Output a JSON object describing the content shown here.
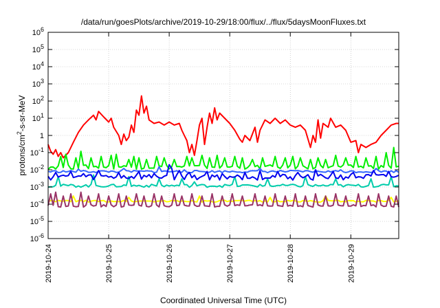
{
  "chart_data": {
    "type": "line",
    "title": "/data/run/goesPlots/archive/2019-10-29/18:00/flux/../flux/5daysMoonFluxes.txt",
    "xlabel": "Coordinated Universal Time (UTC)",
    "ylabel_base": "protons/cm",
    "ylabel_exp": "2",
    "ylabel_rest": "-s-sr-MeV",
    "y_scale": "log",
    "ylim": [
      1e-06,
      1000000.0
    ],
    "y_ticks": [
      {
        "exp": "-6",
        "value": 1e-06
      },
      {
        "exp": "-5",
        "value": 1e-05
      },
      {
        "exp": "-4",
        "value": 0.0001
      },
      {
        "exp": "-3",
        "value": 0.001
      },
      {
        "exp": "-2",
        "value": 0.01
      },
      {
        "exp": "-1",
        "value": 0.1
      },
      {
        "exp": "",
        "value": 1,
        "text": "1"
      },
      {
        "exp": "1",
        "value": 10
      },
      {
        "exp": "2",
        "value": 100
      },
      {
        "exp": "3",
        "value": 1000
      },
      {
        "exp": "4",
        "value": 10000
      },
      {
        "exp": "5",
        "value": 100000
      },
      {
        "exp": "6",
        "value": 1000000
      }
    ],
    "y_tick_base": "10",
    "xlim": [
      "2019-10-24",
      "2019-10-29T19:00"
    ],
    "x_ticks": [
      "2019-10-24",
      "2019-10-25",
      "2019-10-26",
      "2019-10-27",
      "2019-10-28",
      "2019-10-29"
    ],
    "grid": true,
    "legend": "none",
    "series": [
      {
        "color": "#ff0000",
        "points": [
          [
            "2019-10-24T00:00",
            0.3
          ],
          [
            "2019-10-24T01:00",
            0.12
          ],
          [
            "2019-10-24T02:00",
            0.08
          ],
          [
            "2019-10-24T03:00",
            0.15
          ],
          [
            "2019-10-24T04:00",
            0.06
          ],
          [
            "2019-10-24T05:00",
            0.1
          ],
          [
            "2019-10-24T06:00",
            0.05
          ],
          [
            "2019-10-24T08:00",
            0.1
          ],
          [
            "2019-10-24T10:00",
            0.4
          ],
          [
            "2019-10-24T12:00",
            1.5
          ],
          [
            "2019-10-24T14:00",
            4
          ],
          [
            "2019-10-24T16:00",
            8
          ],
          [
            "2019-10-24T18:00",
            15
          ],
          [
            "2019-10-24T19:00",
            8
          ],
          [
            "2019-10-24T20:00",
            25
          ],
          [
            "2019-10-24T22:00",
            12
          ],
          [
            "2019-10-25T00:00",
            6
          ],
          [
            "2019-10-25T01:00",
            10
          ],
          [
            "2019-10-25T02:00",
            3
          ],
          [
            "2019-10-25T04:00",
            1
          ],
          [
            "2019-10-25T05:00",
            0.3
          ],
          [
            "2019-10-25T06:00",
            1.2
          ],
          [
            "2019-10-25T07:00",
            0.5
          ],
          [
            "2019-10-25T08:00",
            0.8
          ],
          [
            "2019-10-25T09:00",
            4
          ],
          [
            "2019-10-25T10:00",
            1.5
          ],
          [
            "2019-10-25T11:00",
            30
          ],
          [
            "2019-10-25T12:00",
            15
          ],
          [
            "2019-10-25T13:00",
            200
          ],
          [
            "2019-10-25T14:00",
            20
          ],
          [
            "2019-10-25T15:00",
            50
          ],
          [
            "2019-10-25T16:00",
            8
          ],
          [
            "2019-10-25T18:00",
            5
          ],
          [
            "2019-10-25T20:00",
            6
          ],
          [
            "2019-10-25T22:00",
            4
          ],
          [
            "2019-10-26T00:00",
            6
          ],
          [
            "2019-10-26T02:00",
            4
          ],
          [
            "2019-10-26T04:00",
            5
          ],
          [
            "2019-10-26T05:00",
            2
          ],
          [
            "2019-10-26T06:00",
            1
          ],
          [
            "2019-10-26T07:00",
            0.5
          ],
          [
            "2019-10-26T08:00",
            0.1
          ],
          [
            "2019-10-26T09:00",
            0.3
          ],
          [
            "2019-10-26T10:00",
            0.07
          ],
          [
            "2019-10-26T11:00",
            0.5
          ],
          [
            "2019-10-26T12:00",
            4
          ],
          [
            "2019-10-26T13:00",
            10
          ],
          [
            "2019-10-26T14:00",
            0.3
          ],
          [
            "2019-10-26T15:00",
            3
          ],
          [
            "2019-10-26T16:00",
            20
          ],
          [
            "2019-10-26T17:00",
            5
          ],
          [
            "2019-10-26T18:00",
            40
          ],
          [
            "2019-10-26T19:00",
            8
          ],
          [
            "2019-10-26T20:00",
            20
          ],
          [
            "2019-10-26T22:00",
            10
          ],
          [
            "2019-10-27T00:00",
            5
          ],
          [
            "2019-10-27T02:00",
            2
          ],
          [
            "2019-10-27T04:00",
            0.6
          ],
          [
            "2019-10-27T05:00",
            0.4
          ],
          [
            "2019-10-27T06:00",
            1
          ],
          [
            "2019-10-27T08:00",
            0.5
          ],
          [
            "2019-10-27T10:00",
            3
          ],
          [
            "2019-10-27T11:00",
            0.4
          ],
          [
            "2019-10-27T12:00",
            2
          ],
          [
            "2019-10-27T14:00",
            8
          ],
          [
            "2019-10-27T16:00",
            5
          ],
          [
            "2019-10-27T18:00",
            10
          ],
          [
            "2019-10-27T20:00",
            5
          ],
          [
            "2019-10-27T22:00",
            8
          ],
          [
            "2019-10-28T00:00",
            4
          ],
          [
            "2019-10-28T02:00",
            3
          ],
          [
            "2019-10-28T04:00",
            4
          ],
          [
            "2019-10-28T06:00",
            2
          ],
          [
            "2019-10-28T08:00",
            0.2
          ],
          [
            "2019-10-28T09:00",
            1
          ],
          [
            "2019-10-28T10:00",
            0.4
          ],
          [
            "2019-10-28T11:00",
            8
          ],
          [
            "2019-10-28T12:00",
            0.7
          ],
          [
            "2019-10-28T13:00",
            5
          ],
          [
            "2019-10-28T15:00",
            3
          ],
          [
            "2019-10-28T16:00",
            10
          ],
          [
            "2019-10-28T18:00",
            3
          ],
          [
            "2019-10-28T20:00",
            4
          ],
          [
            "2019-10-28T22:00",
            2
          ],
          [
            "2019-10-29T00:00",
            0.4
          ],
          [
            "2019-10-29T02:00",
            0.5
          ],
          [
            "2019-10-29T03:00",
            0.1
          ],
          [
            "2019-10-29T04:00",
            0.3
          ],
          [
            "2019-10-29T06:00",
            0.2
          ],
          [
            "2019-10-29T08:00",
            0.3
          ],
          [
            "2019-10-29T10:00",
            0.4
          ],
          [
            "2019-10-29T12:00",
            1
          ],
          [
            "2019-10-29T14:00",
            2
          ],
          [
            "2019-10-29T16:00",
            4
          ],
          [
            "2019-10-29T18:00",
            5
          ],
          [
            "2019-10-29T19:00",
            5
          ]
        ]
      },
      {
        "color": "#00ee00",
        "base": 0.015,
        "floor": 0.008,
        "spikes": [
          [
            "2019-10-24T05:00",
            0.06
          ],
          [
            "2019-10-24T07:00",
            0.08
          ],
          [
            "2019-10-24T11:00",
            0.05
          ],
          [
            "2019-10-24T13:00",
            0.12
          ],
          [
            "2019-10-24T17:00",
            0.05
          ],
          [
            "2019-10-24T21:00",
            0.06
          ],
          [
            "2019-10-25T01:00",
            0.07
          ],
          [
            "2019-10-25T03:00",
            0.08
          ],
          [
            "2019-10-25T08:00",
            0.04
          ],
          [
            "2019-10-25T10:00",
            0.06
          ],
          [
            "2019-10-25T12:00",
            0.05
          ],
          [
            "2019-10-25T15:00",
            0.04
          ],
          [
            "2019-10-25T19:00",
            0.06
          ],
          [
            "2019-10-25T22:00",
            0.05
          ],
          [
            "2019-10-26T02:00",
            0.04
          ],
          [
            "2019-10-26T07:00",
            0.06
          ],
          [
            "2019-10-26T09:00",
            0.05
          ],
          [
            "2019-10-26T13:00",
            0.07
          ],
          [
            "2019-10-26T16:00",
            0.05
          ],
          [
            "2019-10-26T19:00",
            0.07
          ],
          [
            "2019-10-26T22:00",
            0.05
          ],
          [
            "2019-10-27T02:00",
            0.06
          ],
          [
            "2019-10-27T05:00",
            0.05
          ],
          [
            "2019-10-27T09:00",
            0.04
          ],
          [
            "2019-10-27T13:00",
            0.05
          ],
          [
            "2019-10-27T18:00",
            0.06
          ],
          [
            "2019-10-27T22:00",
            0.05
          ],
          [
            "2019-10-28T01:00",
            0.06
          ],
          [
            "2019-10-28T04:00",
            0.05
          ],
          [
            "2019-10-28T08:00",
            0.04
          ],
          [
            "2019-10-28T11:00",
            0.05
          ],
          [
            "2019-10-28T14:00",
            0.04
          ],
          [
            "2019-10-28T18:00",
            0.07
          ],
          [
            "2019-10-28T22:00",
            0.05
          ],
          [
            "2019-10-29T02:00",
            0.06
          ],
          [
            "2019-10-29T06:00",
            0.05
          ],
          [
            "2019-10-29T10:00",
            0.06
          ],
          [
            "2019-10-29T14:00",
            0.1
          ],
          [
            "2019-10-29T17:00",
            0.2
          ]
        ]
      },
      {
        "color": "#3366ff",
        "base": 0.008,
        "floor": 0.006,
        "spikes": [
          [
            "2019-10-24T12:00",
            0.011
          ],
          [
            "2019-10-25T06:00",
            0.012
          ],
          [
            "2019-10-25T20:00",
            0.015
          ],
          [
            "2019-10-26T06:00",
            0.01
          ],
          [
            "2019-10-27T12:00",
            0.012
          ],
          [
            "2019-10-28T20:00",
            0.01
          ],
          [
            "2019-10-29T10:00",
            0.012
          ]
        ]
      },
      {
        "color": "#00ccaa",
        "base": 0.0012,
        "floor": 0.0008,
        "spikes": [
          [
            "2019-10-24T04:00",
            0.004
          ],
          [
            "2019-10-24T18:00",
            0.005
          ],
          [
            "2019-10-25T08:00",
            0.004
          ],
          [
            "2019-10-25T20:00",
            0.003
          ],
          [
            "2019-10-26T05:00",
            0.003
          ],
          [
            "2019-10-26T10:00",
            0.002
          ],
          [
            "2019-10-27T02:00",
            0.004
          ],
          [
            "2019-10-27T15:00",
            0.003
          ],
          [
            "2019-10-28T06:00",
            0.004
          ],
          [
            "2019-10-28T18:00",
            0.003
          ],
          [
            "2019-10-29T08:00",
            0.003
          ],
          [
            "2019-10-29T16:00",
            0.004
          ]
        ]
      },
      {
        "color": "#0000ee",
        "base": 0.004,
        "floor": 0.0015,
        "spikes": [
          [
            "2019-10-24T03:00",
            0.007
          ],
          [
            "2019-10-24T09:00",
            0.008
          ],
          [
            "2019-10-24T14:00",
            0.006
          ],
          [
            "2019-10-24T20:00",
            0.009
          ],
          [
            "2019-10-25T04:00",
            0.007
          ],
          [
            "2019-10-25T12:00",
            0.008
          ],
          [
            "2019-10-25T18:00",
            0.006
          ],
          [
            "2019-10-26T00:00",
            0.02
          ],
          [
            "2019-10-26T01:00",
            0.012
          ],
          [
            "2019-10-26T04:00",
            0.009
          ],
          [
            "2019-10-26T08:00",
            0.007
          ],
          [
            "2019-10-26T15:00",
            0.008
          ],
          [
            "2019-10-26T21:00",
            0.006
          ],
          [
            "2019-10-27T06:00",
            0.007
          ],
          [
            "2019-10-27T12:00",
            0.009
          ],
          [
            "2019-10-27T19:00",
            0.008
          ],
          [
            "2019-10-28T03:00",
            0.007
          ],
          [
            "2019-10-28T10:00",
            0.01
          ],
          [
            "2019-10-28T17:00",
            0.008
          ],
          [
            "2019-10-29T01:00",
            0.007
          ],
          [
            "2019-10-29T09:00",
            0.009
          ],
          [
            "2019-10-29T15:00",
            0.008
          ]
        ]
      },
      {
        "color": "#ffff00",
        "base": 0.00015,
        "floor": 0.00012,
        "spikes": [
          [
            "2019-10-24T10:00",
            0.0003
          ],
          [
            "2019-10-25T08:00",
            0.00025
          ],
          [
            "2019-10-26T12:00",
            0.0003
          ],
          [
            "2019-10-27T16:00",
            0.00025
          ],
          [
            "2019-10-28T14:00",
            0.0003
          ],
          [
            "2019-10-29T16:00",
            0.00025
          ]
        ]
      },
      {
        "color": "#993366",
        "base": 8e-05,
        "floor": 6e-05,
        "spikes": [
          [
            "2019-10-24T01:00",
            0.0004
          ],
          [
            "2019-10-24T03:00",
            0.0005
          ],
          [
            "2019-10-24T06:00",
            0.0003
          ],
          [
            "2019-10-24T09:00",
            0.0004
          ],
          [
            "2019-10-24T13:00",
            0.0005
          ],
          [
            "2019-10-24T16:00",
            0.0003
          ],
          [
            "2019-10-24T20:00",
            0.0004
          ],
          [
            "2019-10-25T00:00",
            0.0003
          ],
          [
            "2019-10-25T04:00",
            0.0004
          ],
          [
            "2019-10-25T07:00",
            0.0003
          ],
          [
            "2019-10-25T11:00",
            0.0004
          ],
          [
            "2019-10-25T14:00",
            0.0003
          ],
          [
            "2019-10-25T18:00",
            0.0004
          ],
          [
            "2019-10-25T21:00",
            0.0003
          ],
          [
            "2019-10-26T02:00",
            0.0004
          ],
          [
            "2019-10-26T05:00",
            0.0003
          ],
          [
            "2019-10-26T09:00",
            0.0004
          ],
          [
            "2019-10-26T13:00",
            0.0003
          ],
          [
            "2019-10-26T17:00",
            0.0004
          ],
          [
            "2019-10-26T21:00",
            0.0003
          ],
          [
            "2019-10-27T01:00",
            0.0004
          ],
          [
            "2019-10-27T05:00",
            0.0003
          ],
          [
            "2019-10-27T10:00",
            0.0004
          ],
          [
            "2019-10-27T14:00",
            0.0003
          ],
          [
            "2019-10-27T18:00",
            0.0004
          ],
          [
            "2019-10-27T22:00",
            0.0003
          ],
          [
            "2019-10-28T02:00",
            0.0004
          ],
          [
            "2019-10-28T06:00",
            0.0003
          ],
          [
            "2019-10-28T10:00",
            0.0004
          ],
          [
            "2019-10-28T14:00",
            0.0003
          ],
          [
            "2019-10-28T18:00",
            0.0004
          ],
          [
            "2019-10-28T22:00",
            0.0003
          ],
          [
            "2019-10-29T03:00",
            0.0004
          ],
          [
            "2019-10-29T07:00",
            0.0003
          ],
          [
            "2019-10-29T11:00",
            0.0004
          ],
          [
            "2019-10-29T15:00",
            0.0003
          ],
          [
            "2019-10-29T18:00",
            0.0003
          ]
        ]
      }
    ]
  }
}
